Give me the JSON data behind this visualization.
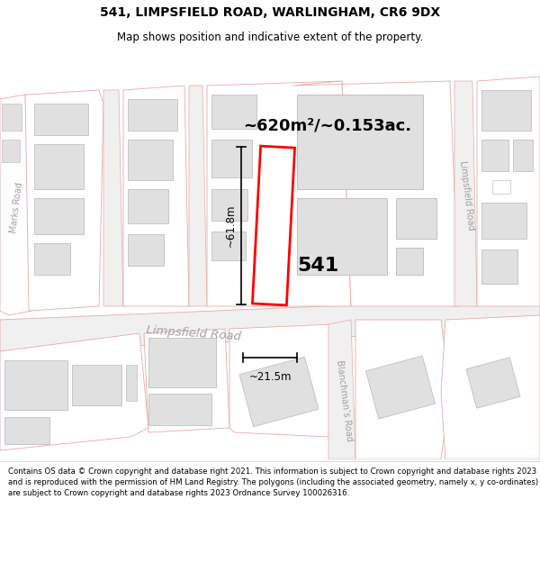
{
  "title_line1": "541, LIMPSFIELD ROAD, WARLINGHAM, CR6 9DX",
  "title_line2": "Map shows position and indicative extent of the property.",
  "area_label": "~620m²/~0.153ac.",
  "property_number": "541",
  "dim_vertical": "~61.8m",
  "dim_horizontal": "~21.5m",
  "road_label": "Limpsfield Road",
  "road_label2": "Marks Road",
  "road_label3": "Limpsfield Road",
  "road_label4": "Blanchman’s Road",
  "footer_text": "Contains OS data © Crown copyright and database right 2021. This information is subject to Crown copyright and database rights 2023 and is reproduced with the permission of HM Land Registry. The polygons (including the associated geometry, namely x, y co-ordinates) are subject to Crown copyright and database rights 2023 Ordnance Survey 100026316.",
  "bg_color": "#ffffff",
  "street_color": "#e8a8a8",
  "building_fill": "#e0e0e0",
  "building_edge": "#c0c0c0",
  "highlight_color": "#ff0000",
  "text_color": "#000000",
  "road_text_color": "#a0a0a0",
  "dim_line_color": "#000000"
}
